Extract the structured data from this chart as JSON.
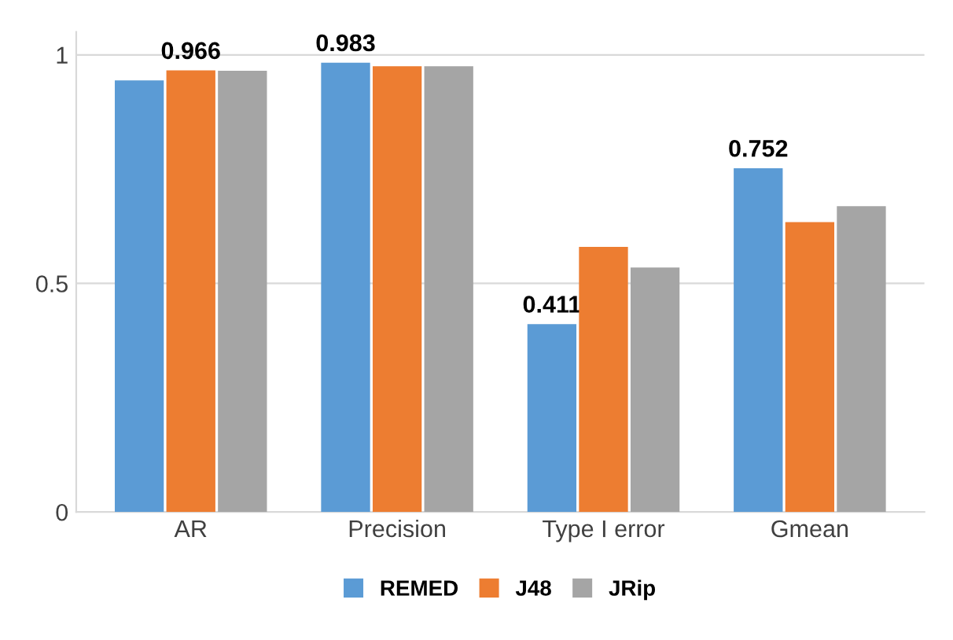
{
  "chart_data": {
    "type": "bar",
    "categories": [
      "AR",
      "Precision",
      "Type I error",
      "Gmean"
    ],
    "series": [
      {
        "name": "REMED",
        "color": "#5b9bd5",
        "values": [
          0.944,
          0.983,
          0.411,
          0.752
        ],
        "value_labels": [
          null,
          "0.983",
          "0.411",
          "0.752"
        ]
      },
      {
        "name": "J48",
        "color": "#ed7d31",
        "values": [
          0.966,
          0.975,
          0.58,
          0.634
        ],
        "value_labels": [
          "0.966",
          null,
          null,
          null
        ]
      },
      {
        "name": "JRip",
        "color": "#a5a5a5",
        "values": [
          0.965,
          0.975,
          0.535,
          0.669
        ],
        "value_labels": [
          null,
          null,
          null,
          null
        ]
      }
    ],
    "ylim": [
      0,
      1.05
    ],
    "yticks": [
      0,
      0.5,
      1
    ],
    "grid": "y",
    "legend": "bottom"
  }
}
